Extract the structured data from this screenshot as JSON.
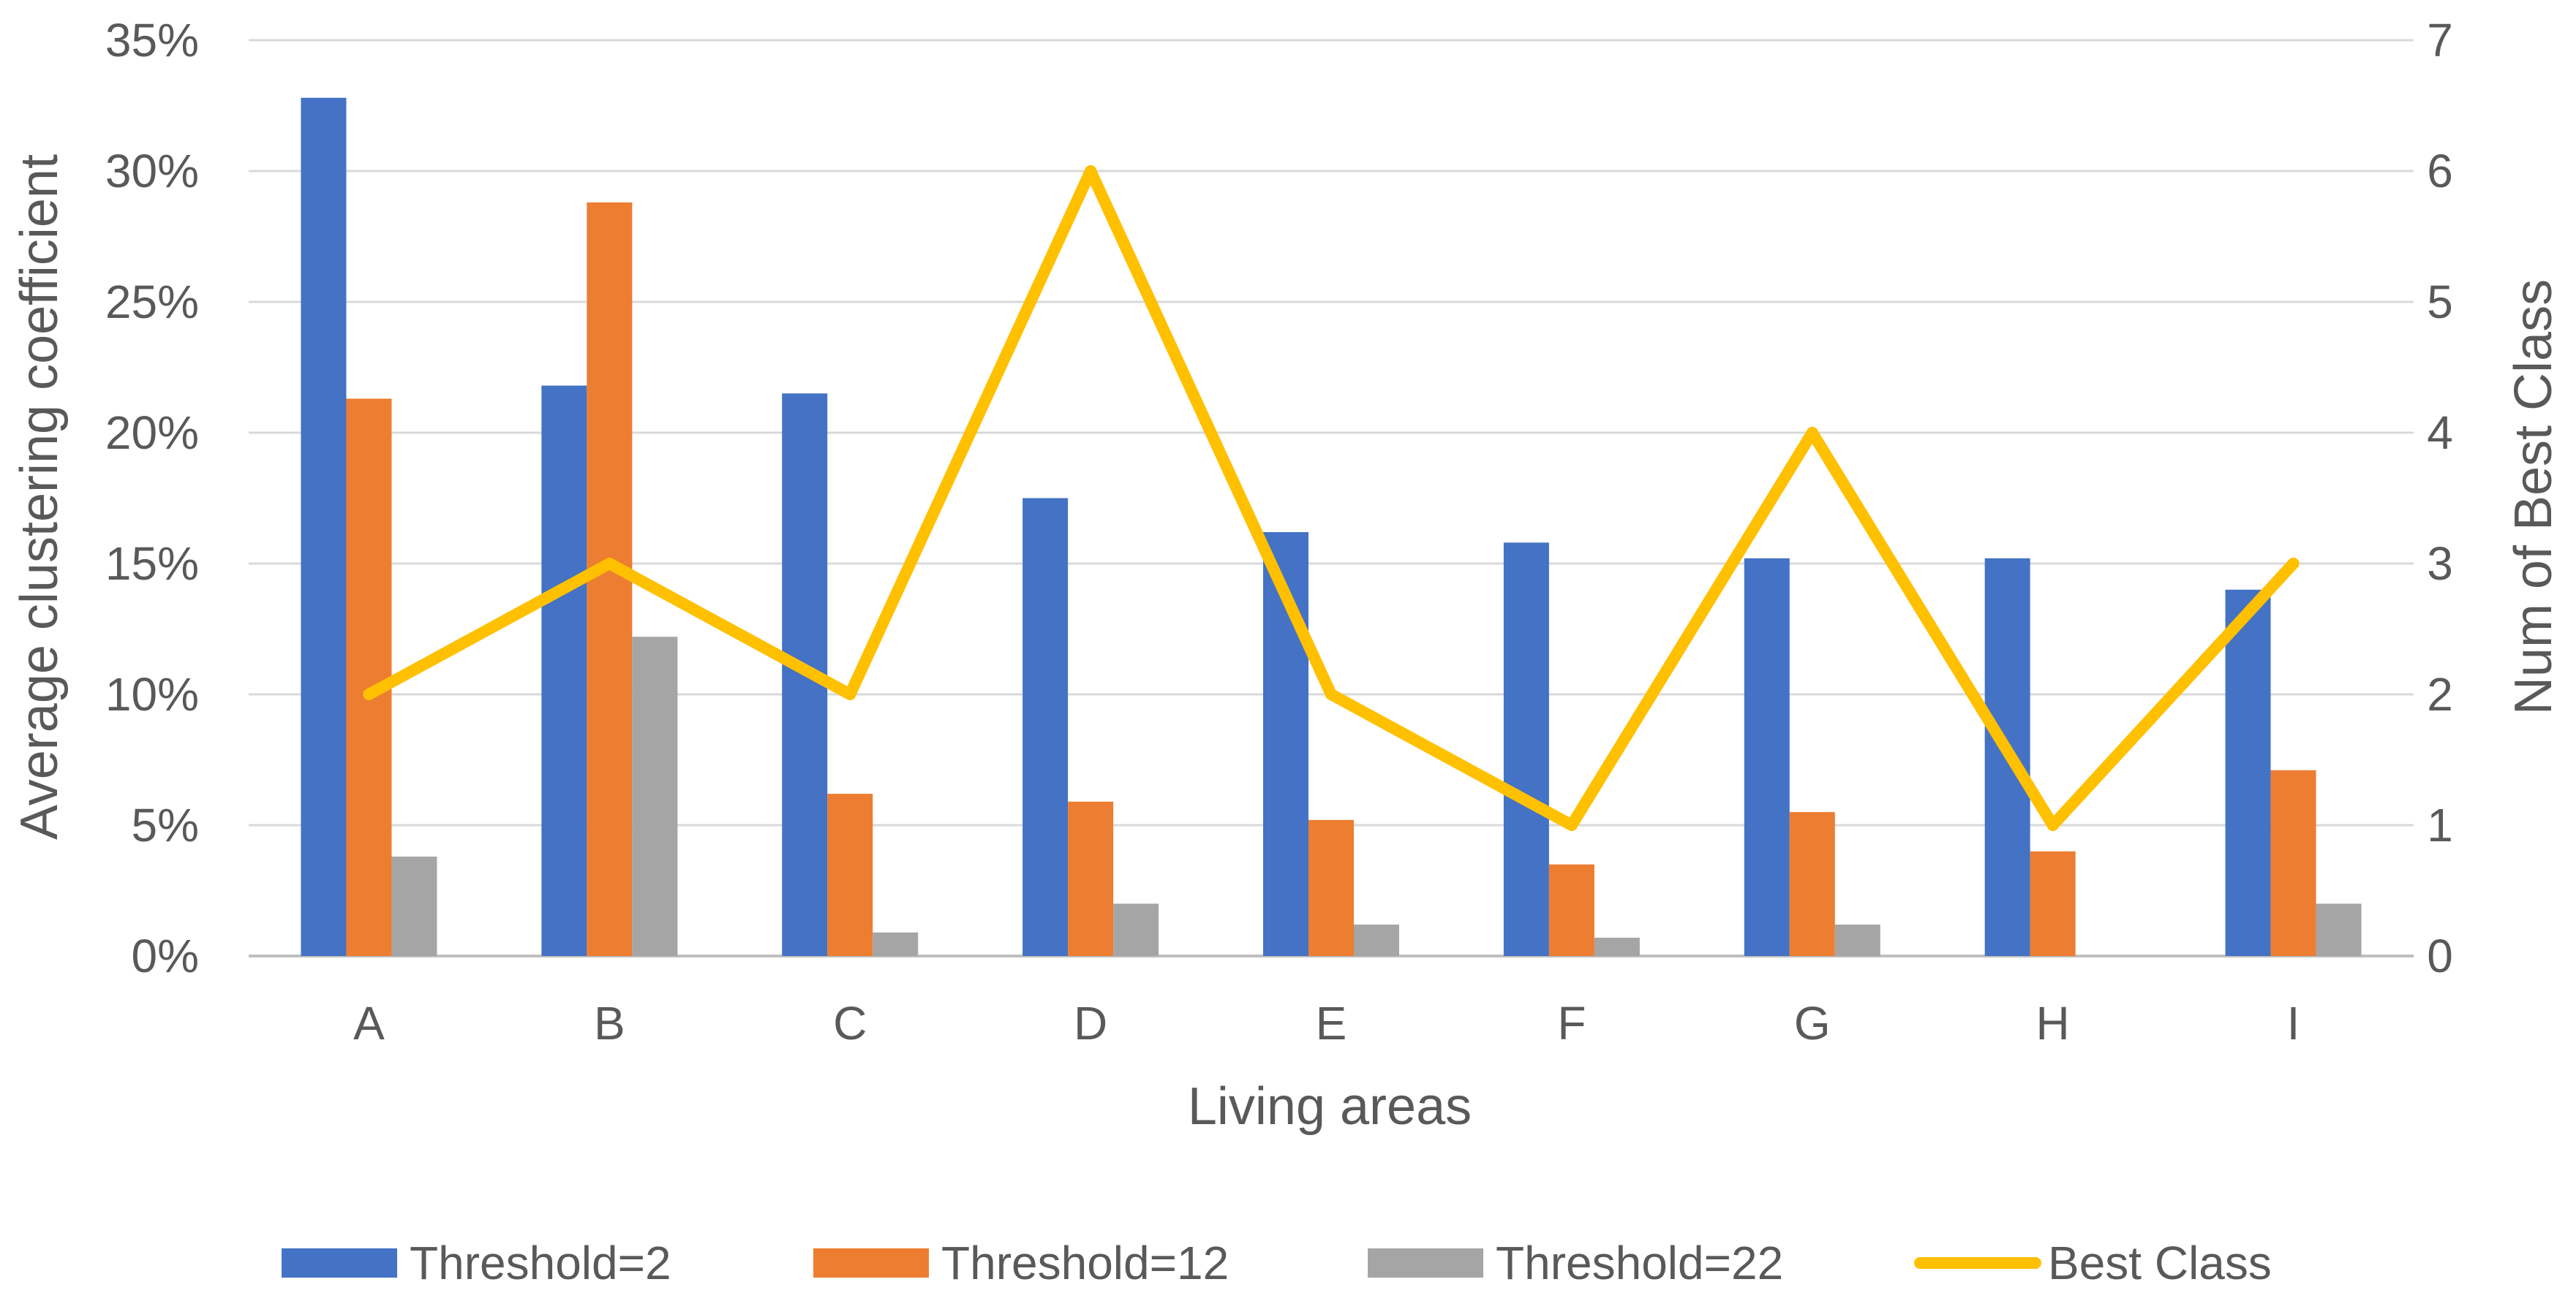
{
  "chart_data": {
    "type": "bar",
    "title": "",
    "categories": [
      "A",
      "B",
      "C",
      "D",
      "E",
      "F",
      "G",
      "H",
      "I"
    ],
    "series": [
      {
        "name": "Threshold=2",
        "type": "bar",
        "axis": "left",
        "color": "#4472C4",
        "values": [
          32.8,
          21.8,
          21.5,
          17.5,
          16.2,
          15.8,
          15.2,
          15.2,
          14.0
        ]
      },
      {
        "name": "Threshold=12",
        "type": "bar",
        "axis": "left",
        "color": "#ED7D31",
        "values": [
          21.3,
          28.8,
          6.2,
          5.9,
          5.2,
          3.5,
          5.5,
          4.0,
          7.1
        ]
      },
      {
        "name": "Threshold=22",
        "type": "bar",
        "axis": "left",
        "color": "#A5A5A5",
        "values": [
          3.8,
          12.2,
          0.9,
          2.0,
          1.2,
          0.7,
          1.2,
          0.0,
          2.0
        ]
      },
      {
        "name": "Best Class",
        "type": "line",
        "axis": "right",
        "color": "#FFC000",
        "values": [
          2,
          3,
          2,
          6,
          2,
          1,
          4,
          1,
          3
        ]
      }
    ],
    "xlabel": "Living areas",
    "ylabel": "Average clustering coefficient",
    "y2label": "Num of Best Class",
    "ylim": [
      0,
      35
    ],
    "y2lim": [
      0,
      7
    ],
    "yticks": [
      "0%",
      "5%",
      "10%",
      "15%",
      "20%",
      "25%",
      "30%",
      "35%"
    ],
    "y2ticks": [
      "0",
      "1",
      "2",
      "3",
      "4",
      "5",
      "6",
      "7"
    ],
    "grid": true,
    "legend_position": "bottom"
  }
}
